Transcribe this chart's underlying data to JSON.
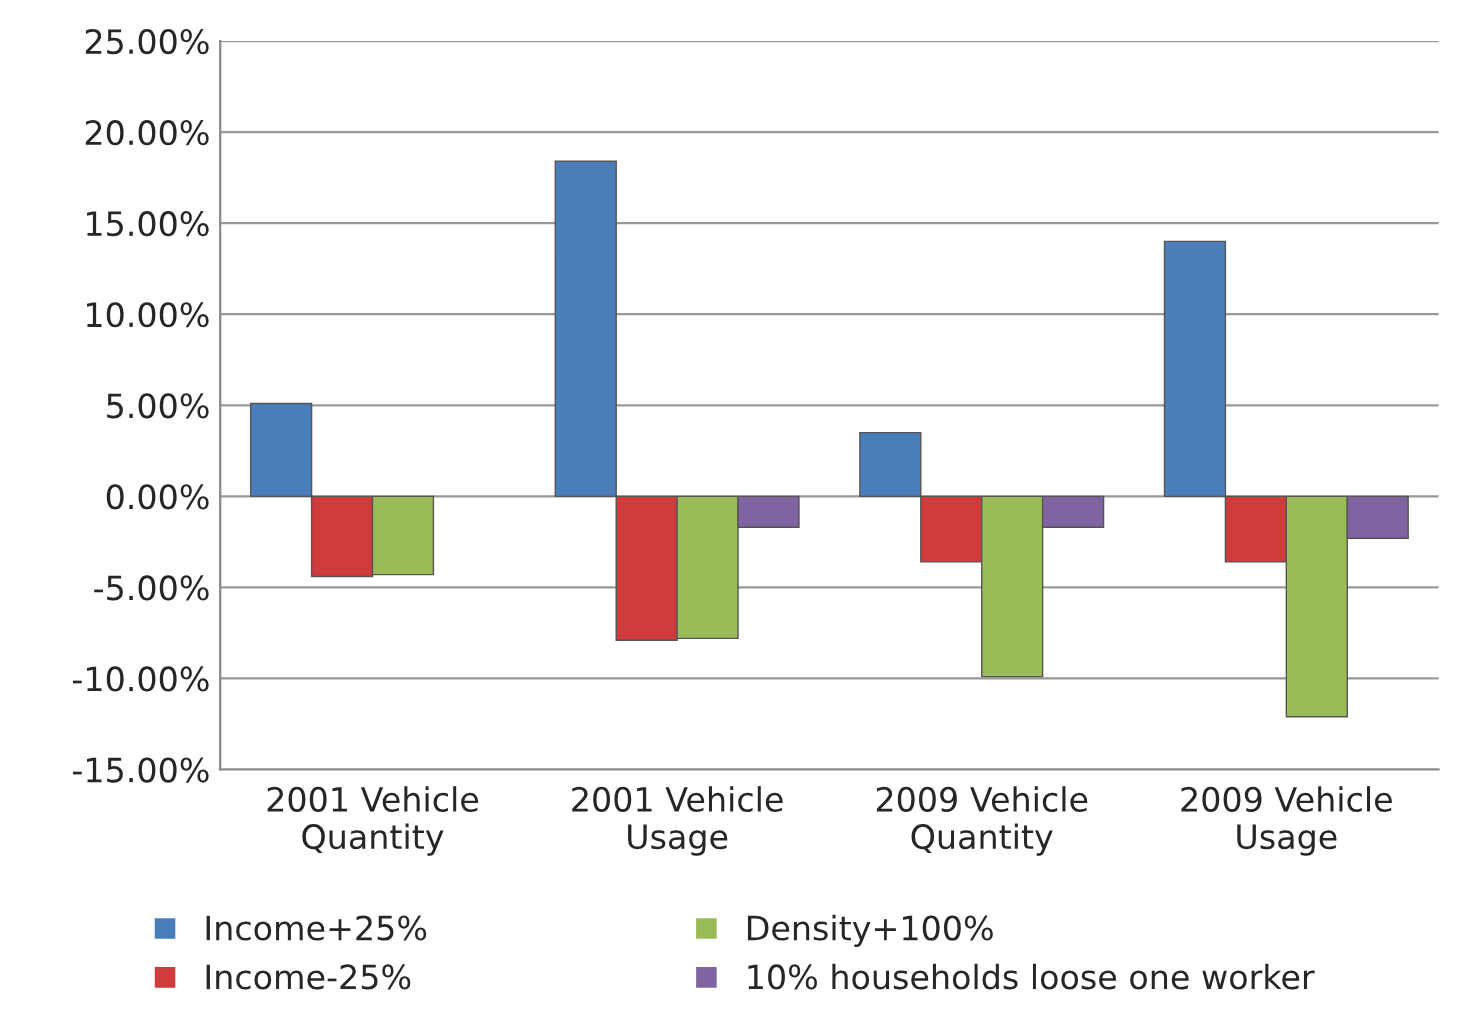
{
  "chart_data": {
    "type": "bar",
    "categories": [
      "2001 Vehicle\nQuantity",
      "2001 Vehicle\nUsage",
      "2009 Vehicle\nQuantity",
      "2009 Vehicle\nUsage"
    ],
    "series": [
      {
        "name": "Income+25%",
        "color": "#4a7ebb",
        "values": [
          5.1,
          18.4,
          3.5,
          14.0
        ]
      },
      {
        "name": "Income-25%",
        "color": "#d03b3b",
        "values": [
          -4.4,
          -7.9,
          -3.6,
          -3.6
        ]
      },
      {
        "name": "Density+100%",
        "color": "#9bbb59",
        "values": [
          -4.3,
          -7.8,
          -9.9,
          -12.1
        ]
      },
      {
        "name": "10% households loose one worker",
        "color": "#8064a2",
        "values": [
          null,
          -1.7,
          -1.7,
          -2.3
        ]
      }
    ],
    "ylim": [
      -15,
      25
    ],
    "yticks": [
      {
        "value": -15,
        "label": "-15.00%"
      },
      {
        "value": -10,
        "label": "-10.00%"
      },
      {
        "value": -5,
        "label": "-5.00%"
      },
      {
        "value": 0,
        "label": "0.00%"
      },
      {
        "value": 5,
        "label": "5.00%"
      },
      {
        "value": 10,
        "label": "10.00%"
      },
      {
        "value": 15,
        "label": "15.00%"
      },
      {
        "value": 20,
        "label": "20.00%"
      },
      {
        "value": 25,
        "label": "25.00%"
      }
    ],
    "grid": "y",
    "legend": "bottom"
  }
}
